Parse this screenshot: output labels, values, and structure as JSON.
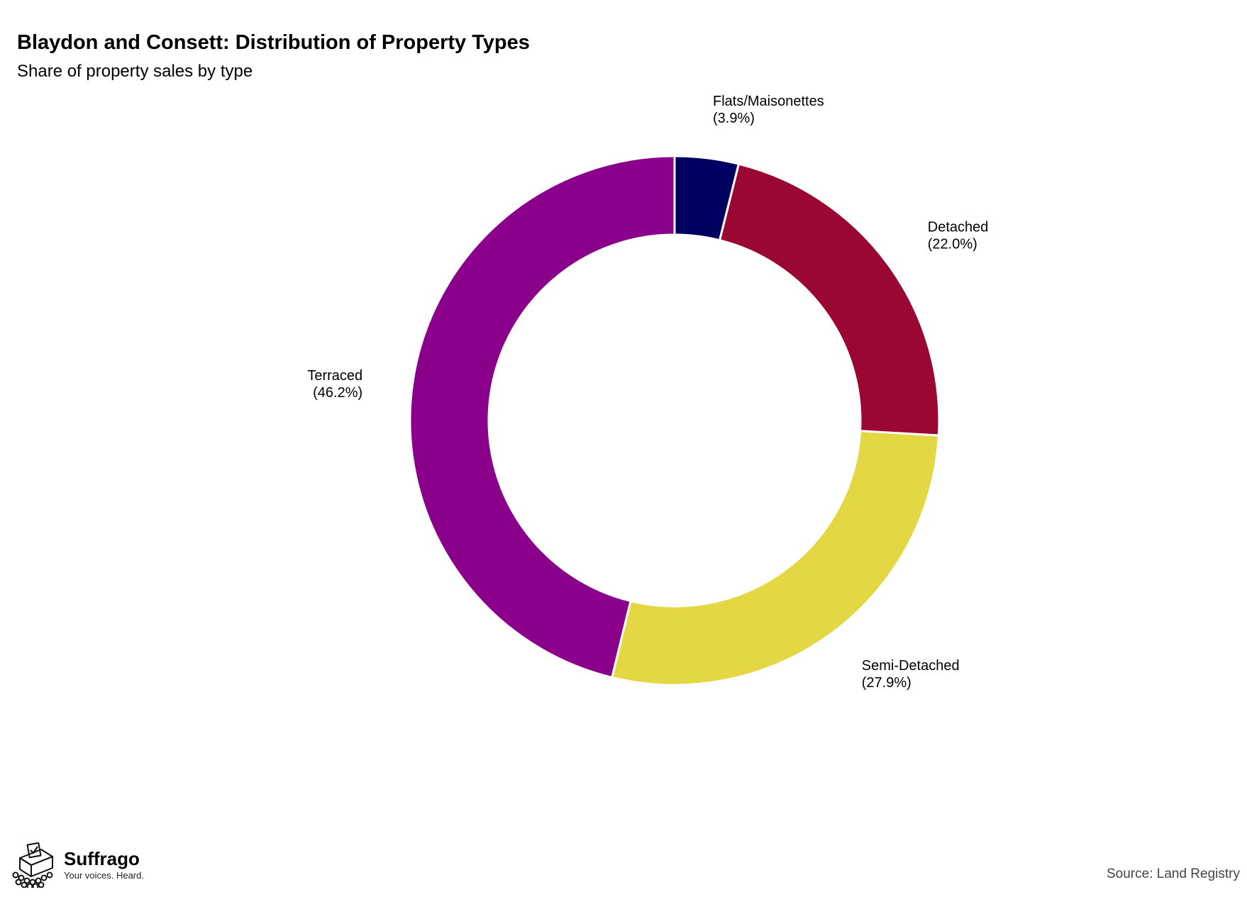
{
  "chart_data": {
    "type": "pie",
    "variant": "donut",
    "title": "Blaydon and Consett: Distribution of Property Types",
    "subtitle": "Share of property sales by type",
    "slices": [
      {
        "label": "Flats/Maisonettes",
        "value": 3.9,
        "display": "(3.9%)",
        "color": "#000060"
      },
      {
        "label": "Detached",
        "value": 22.0,
        "display": "(22.0%)",
        "color": "#9b0733"
      },
      {
        "label": "Semi-Detached",
        "value": 27.9,
        "display": "(27.9%)",
        "color": "#e3d743"
      },
      {
        "label": "Terraced",
        "value": 46.2,
        "display": "(46.2%)",
        "color": "#8b008b"
      }
    ],
    "start_angle": "12 o'clock",
    "direction": "clockwise",
    "legend": "none"
  },
  "footer": {
    "source": "Source: Land Registry",
    "brand_name": "Suffrago",
    "brand_tagline": "Your voices. Heard.",
    "brand_icon": "ballot-box-icon"
  }
}
